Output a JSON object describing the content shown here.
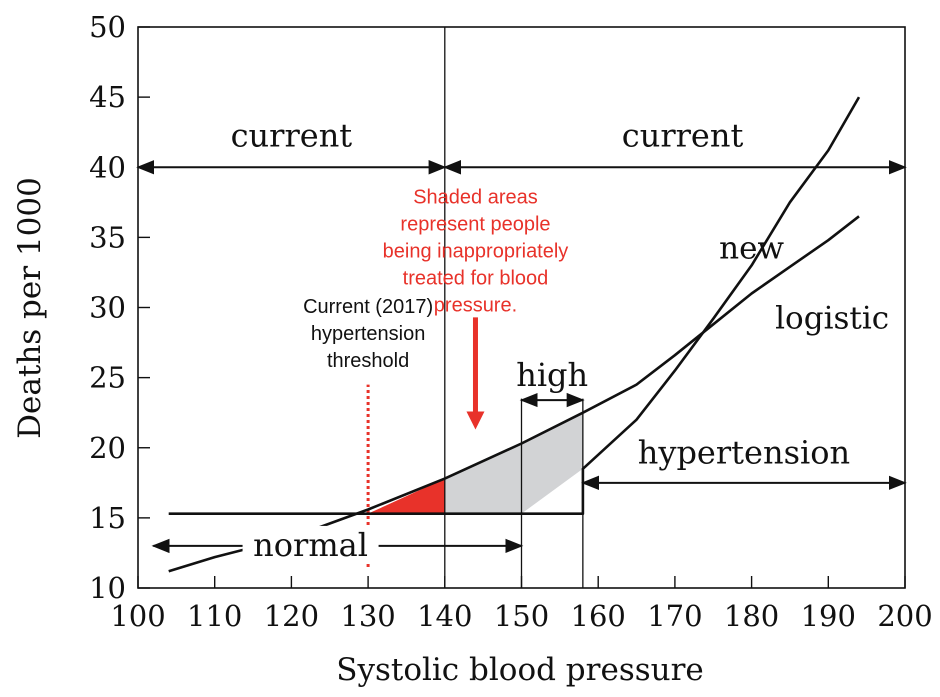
{
  "chart_data": {
    "type": "line",
    "title": "",
    "xlabel": "Systolic blood pressure",
    "ylabel": "Deaths per 1000",
    "xlim": [
      100,
      200
    ],
    "ylim": [
      10,
      50
    ],
    "x_ticks": [
      100,
      110,
      120,
      130,
      140,
      150,
      160,
      170,
      180,
      190,
      200
    ],
    "y_ticks": [
      10,
      15,
      20,
      25,
      30,
      35,
      40,
      45,
      50
    ],
    "grid": false,
    "series": [
      {
        "name": "new",
        "points": [
          [
            104,
            15.3
          ],
          [
            158,
            15.3
          ],
          [
            158,
            18.5
          ],
          [
            165,
            22
          ],
          [
            170,
            25.5
          ],
          [
            175,
            29.2
          ],
          [
            180,
            33
          ],
          [
            185,
            37.5
          ],
          [
            190,
            41.2
          ],
          [
            194,
            45
          ]
        ]
      },
      {
        "name": "logistic",
        "points": [
          [
            104,
            11.2
          ],
          [
            110,
            12.2
          ],
          [
            120,
            13.6
          ],
          [
            130,
            15.6
          ],
          [
            140,
            17.8
          ],
          [
            150,
            20.3
          ],
          [
            158,
            22.5
          ],
          [
            165,
            24.5
          ],
          [
            170,
            26.6
          ],
          [
            175,
            28.8
          ],
          [
            180,
            31
          ],
          [
            185,
            32.9
          ],
          [
            190,
            34.8
          ],
          [
            194,
            36.5
          ]
        ]
      }
    ],
    "shaded_regions": [
      {
        "color": "#e8322a",
        "points": [
          [
            130,
            15.3
          ],
          [
            140,
            15.3
          ],
          [
            140,
            17.8
          ]
        ]
      },
      {
        "color": "#d2d3d5",
        "points": [
          [
            140,
            15.3
          ],
          [
            150,
            15.3
          ],
          [
            158,
            18.5
          ],
          [
            158,
            22.5
          ],
          [
            150,
            20.3
          ],
          [
            140,
            17.8
          ]
        ]
      }
    ],
    "vertical_lines": [
      {
        "x": 140,
        "from": 10,
        "to": 50,
        "style": "solid"
      },
      {
        "x": 150,
        "from": 10,
        "to": 23.5,
        "style": "solid"
      },
      {
        "x": 158,
        "from": 10,
        "to": 23.5,
        "style": "solid"
      },
      {
        "x": 130,
        "from": 11.5,
        "to": 24.5,
        "style": "dotted",
        "color": "#e8322a"
      }
    ],
    "range_arrows": [
      {
        "label": "current",
        "x1": 100,
        "x2": 140,
        "y": 40,
        "label_x": 120,
        "label_y": 42.2
      },
      {
        "label": "current",
        "x1": 140,
        "x2": 200,
        "y": 40,
        "label_x": 171,
        "label_y": 42.2
      },
      {
        "label": "normal",
        "x1": 102,
        "x2": 150,
        "y": 13,
        "label_x": 122.5,
        "label_y": 13
      },
      {
        "label": "high",
        "x1": 150,
        "x2": 158,
        "y": 23.4,
        "label_x": 154,
        "label_y": 25.1
      },
      {
        "label": "hypertension",
        "x1": 158,
        "x2": 200,
        "y": 17.5,
        "label_x": 179,
        "label_y": 19.6
      }
    ],
    "curve_labels": [
      {
        "text": "new",
        "x": 180,
        "y": 34.2
      },
      {
        "text": "logistic",
        "x": 190.5,
        "y": 29.2
      }
    ],
    "annotations": [
      {
        "lines": [
          "Current (2017)",
          "hypertension",
          "threshold"
        ],
        "x": 130,
        "y": 29.6,
        "color": "#111111"
      },
      {
        "lines": [
          "Shaded areas",
          "represent people",
          "being inappropriately",
          "treated for blood",
          "pressure."
        ],
        "x": 144,
        "y": 37.4,
        "color": "#e8322a"
      }
    ],
    "arrow_note": {
      "x": 144,
      "y_from": 29.3,
      "y_to": 21.3,
      "color": "#e8322a"
    }
  }
}
